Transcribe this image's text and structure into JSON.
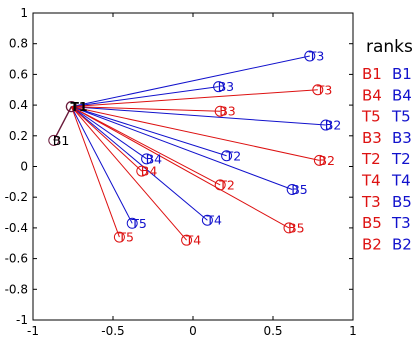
{
  "chart_data": {
    "type": "scatter",
    "xlim": [
      -1,
      1
    ],
    "ylim": [
      -1,
      1
    ],
    "xticks": [
      "-1",
      "-0.5",
      "0",
      "0.5",
      "1"
    ],
    "yticks": [
      "-1",
      "-0.8",
      "-0.6",
      "-0.4",
      "-0.2",
      "0",
      "0.2",
      "0.4",
      "0.6",
      "0.8",
      "1"
    ],
    "xtick_values": [
      -1,
      -0.5,
      0,
      0.5,
      1
    ],
    "ytick_values": [
      -1,
      -0.8,
      -0.6,
      -0.4,
      -0.2,
      0,
      0.2,
      0.4,
      0.6,
      0.8,
      1
    ],
    "grid": false,
    "colors": {
      "red": "#dd1111",
      "blue": "#1111cc",
      "dark": "#6a1a3a",
      "black": "#000000"
    },
    "origin": {
      "label": "T1",
      "x": -0.76,
      "y": 0.39
    },
    "series": [
      {
        "color": "blue",
        "points": [
          {
            "label": "T3",
            "x": 0.73,
            "y": 0.72
          },
          {
            "label": "B3",
            "x": 0.16,
            "y": 0.52
          },
          {
            "label": "B2",
            "x": 0.83,
            "y": 0.27
          },
          {
            "label": "T2",
            "x": 0.21,
            "y": 0.07
          },
          {
            "label": "B4",
            "x": -0.29,
            "y": 0.05
          },
          {
            "label": "B5",
            "x": 0.62,
            "y": -0.15
          },
          {
            "label": "T4",
            "x": 0.09,
            "y": -0.35
          },
          {
            "label": "T5",
            "x": -0.38,
            "y": -0.37
          }
        ]
      },
      {
        "color": "red",
        "points": [
          {
            "label": "T3",
            "x": 0.78,
            "y": 0.5
          },
          {
            "label": "B3",
            "x": 0.17,
            "y": 0.36
          },
          {
            "label": "B2",
            "x": 0.79,
            "y": 0.04
          },
          {
            "label": "T2",
            "x": 0.17,
            "y": -0.12
          },
          {
            "label": "B4",
            "x": -0.32,
            "y": -0.03
          },
          {
            "label": "B5",
            "x": 0.6,
            "y": -0.4
          },
          {
            "label": "T4",
            "x": -0.04,
            "y": -0.48
          },
          {
            "label": "T5",
            "x": -0.46,
            "y": -0.46
          }
        ]
      }
    ],
    "extra_point": {
      "label": "B1",
      "x": -0.87,
      "y": 0.17
    },
    "ranks": {
      "title": "ranks",
      "red": [
        "B1",
        "B4",
        "T5",
        "B3",
        "T2",
        "T4",
        "T3",
        "B5",
        "B2"
      ],
      "blue": [
        "B1",
        "B4",
        "T5",
        "B3",
        "T2",
        "T4",
        "B5",
        "T3",
        "B2"
      ]
    }
  }
}
